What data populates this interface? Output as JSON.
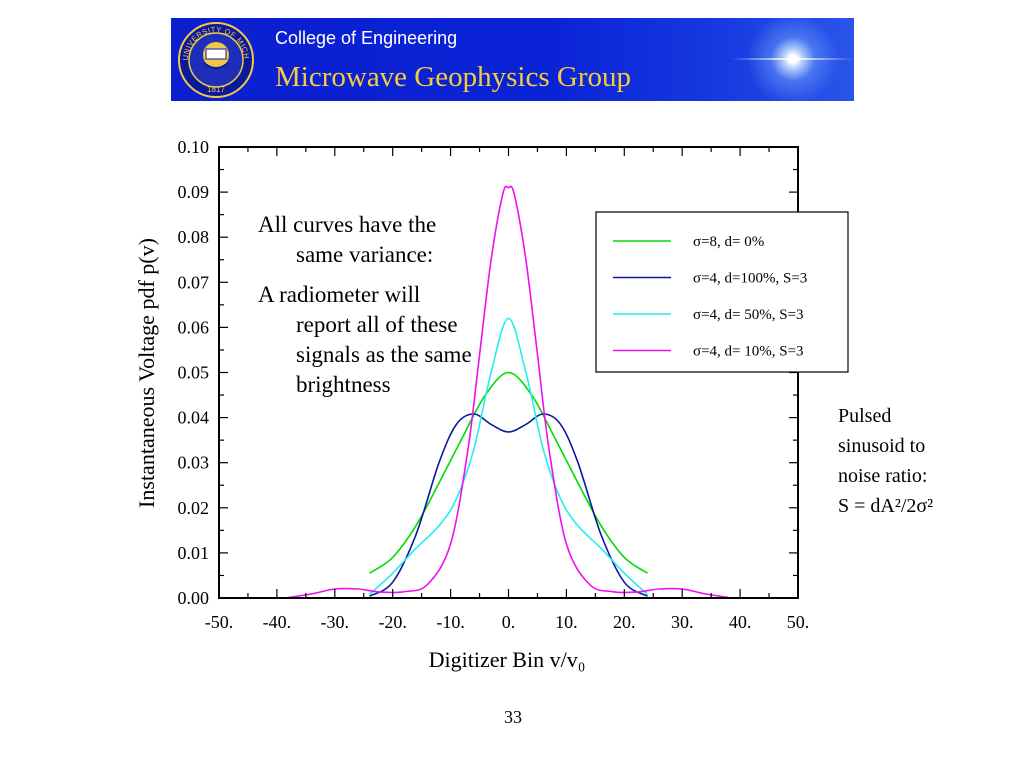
{
  "banner": {
    "subtitle": "College of Engineering",
    "title": "Microwave Geophysics Group",
    "seal_text_top": "THE UNIVERSITY OF MICHIGAN",
    "seal_year": "1817",
    "colors": {
      "background": "#0b1fd0",
      "subtitle": "#ffffff",
      "title": "#f6cc3c"
    }
  },
  "annotations": {
    "left_para1": "All curves have the same variance:",
    "left_para2": "A radiometer will report all of these signals as the same brightness",
    "right_line1": "Pulsed",
    "right_line2": "sinusoid to",
    "right_line3": "noise ratio:",
    "right_formula": "S = dA²/2σ²"
  },
  "page_number": "33",
  "chart_data": {
    "type": "line",
    "title": "",
    "xlabel": "Digitizer Bin  v/v₀",
    "ylabel": "Instantaneous Voltage  pdf  p(v)",
    "xlim": [
      -50,
      50
    ],
    "ylim": [
      0,
      0.1
    ],
    "xticks": [
      -50,
      -40,
      -30,
      -20,
      -10,
      0,
      10,
      20,
      30,
      40,
      50
    ],
    "xtick_labels": [
      "-50.",
      "-40.",
      "-30.",
      "-20.",
      "-10.",
      "0.",
      "10.",
      "20.",
      "30.",
      "40.",
      "50."
    ],
    "yticks": [
      0,
      0.01,
      0.02,
      0.03,
      0.04,
      0.05,
      0.06,
      0.07,
      0.08,
      0.09,
      0.1
    ],
    "ytick_labels": [
      "0.00",
      "0.01",
      "0.02",
      "0.03",
      "0.04",
      "0.05",
      "0.06",
      "0.07",
      "0.08",
      "0.09",
      "0.10"
    ],
    "grid": false,
    "legend_position": "top-right",
    "series": [
      {
        "name": "σ=8, d=  0%",
        "color": "#00dd00",
        "x": [
          -24,
          -20,
          -16,
          -12,
          -8,
          -4,
          0,
          4,
          8,
          12,
          16,
          20,
          24
        ],
        "y": [
          0.0055,
          0.009,
          0.016,
          0.0255,
          0.0355,
          0.045,
          0.05,
          0.045,
          0.0355,
          0.0255,
          0.016,
          0.009,
          0.0055
        ]
      },
      {
        "name": "σ=4, d=100%, S=3",
        "color": "#0a1aa0",
        "x": [
          -24,
          -20,
          -16,
          -12,
          -9,
          -6,
          -3,
          0,
          3,
          6,
          9,
          12,
          16,
          20,
          24
        ],
        "y": [
          0.0004,
          0.0035,
          0.014,
          0.03,
          0.0385,
          0.0408,
          0.0385,
          0.0368,
          0.0385,
          0.0408,
          0.0385,
          0.03,
          0.014,
          0.0035,
          0.0004
        ]
      },
      {
        "name": "σ=4, d= 50%, S=3",
        "color": "#22eeee",
        "x": [
          -24,
          -20,
          -16,
          -12,
          -9,
          -6,
          -3,
          0,
          3,
          6,
          9,
          12,
          16,
          20,
          24
        ],
        "y": [
          0.0008,
          0.0055,
          0.011,
          0.016,
          0.022,
          0.033,
          0.05,
          0.062,
          0.05,
          0.033,
          0.022,
          0.016,
          0.011,
          0.0055,
          0.0008
        ]
      },
      {
        "name": "σ=4, d= 10%, S=3",
        "color": "#ee10ee",
        "x": [
          -38,
          -34,
          -30,
          -26,
          -22,
          -18,
          -14,
          -10,
          -7,
          -5,
          -3,
          -1,
          0,
          1,
          3,
          5,
          7,
          10,
          14,
          18,
          22,
          26,
          30,
          34,
          38
        ],
        "y": [
          0.0001,
          0.0009,
          0.002,
          0.002,
          0.0013,
          0.0014,
          0.003,
          0.012,
          0.033,
          0.054,
          0.075,
          0.0895,
          0.091,
          0.0895,
          0.075,
          0.054,
          0.033,
          0.012,
          0.003,
          0.0014,
          0.0013,
          0.002,
          0.002,
          0.0009,
          0.0001
        ]
      }
    ]
  }
}
